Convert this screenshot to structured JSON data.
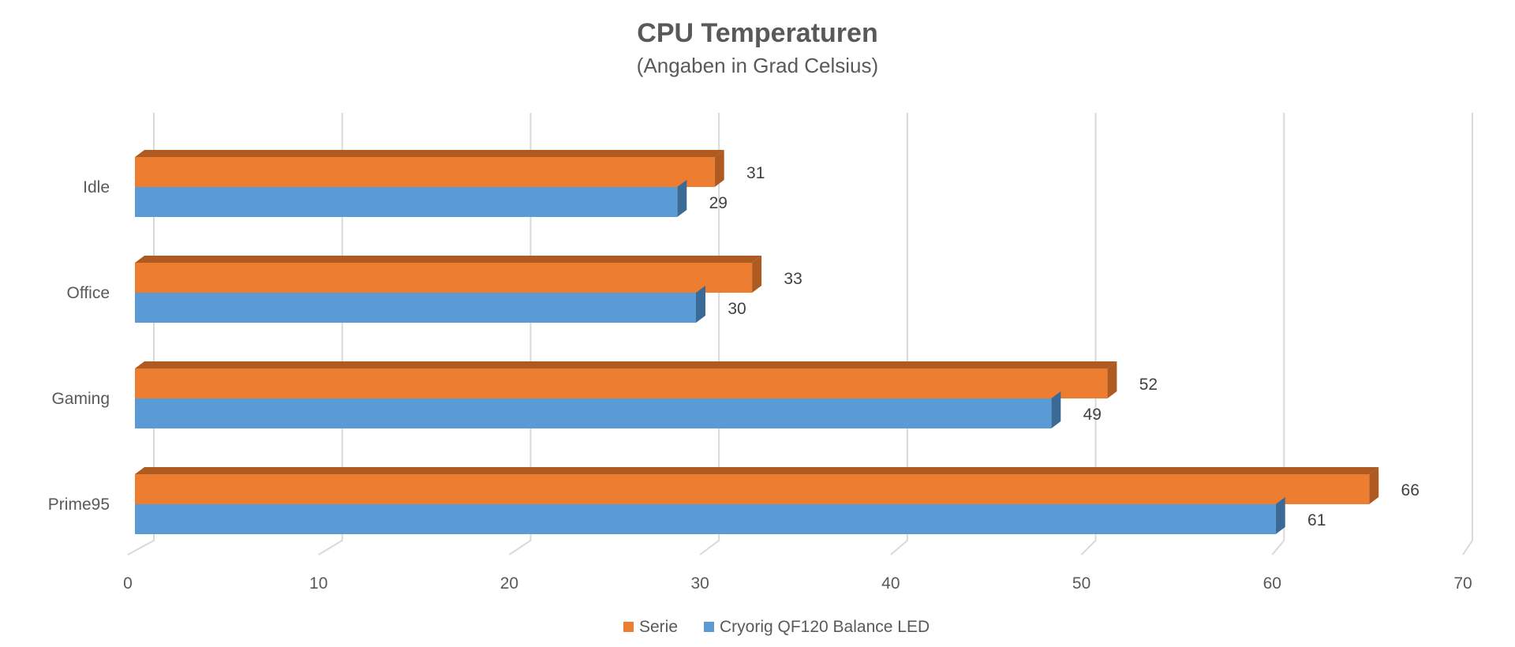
{
  "chart_data": {
    "type": "bar",
    "orientation": "horizontal",
    "style": "3d",
    "title": "CPU Temperaturen",
    "subtitle": "(Angaben in Grad Celsius)",
    "categories": [
      "Idle",
      "Office",
      "Gaming",
      "Prime95"
    ],
    "series": [
      {
        "name": "Serie",
        "values": [
          31,
          33,
          52,
          66
        ],
        "color": "#ED7D31",
        "color_dark": "#AE5A21"
      },
      {
        "name": "Cryorig QF120 Balance LED",
        "values": [
          29,
          30,
          49,
          61
        ],
        "color": "#5B9BD5",
        "color_dark": "#3A6A95"
      }
    ],
    "x_ticks": [
      "0",
      "10",
      "20",
      "30",
      "40",
      "50",
      "60",
      "70"
    ],
    "xlim": [
      0,
      70
    ],
    "grid": true,
    "legend_position": "bottom"
  }
}
